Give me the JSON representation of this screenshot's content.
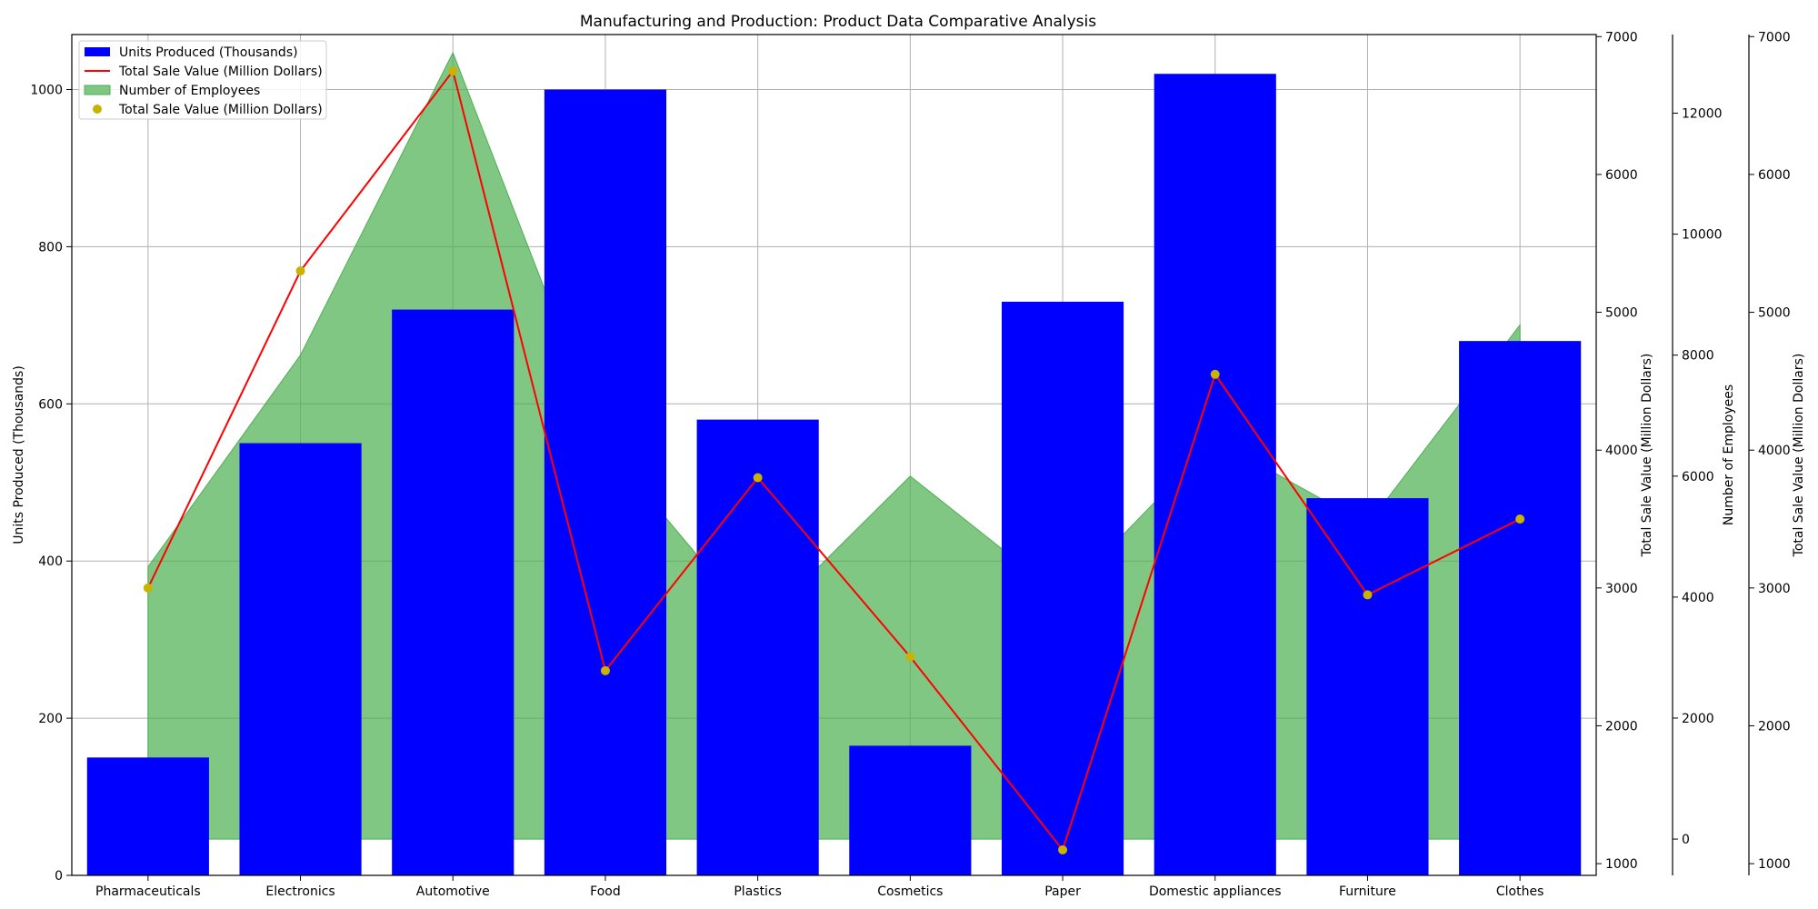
{
  "chart_data": {
    "type": "bar",
    "title": "Manufacturing and Production: Product Data Comparative Analysis",
    "categories": [
      "Pharmaceuticals",
      "Electronics",
      "Automotive",
      "Food",
      "Plastics",
      "Cosmetics",
      "Paper",
      "Domestic appliances",
      "Furniture",
      "Clothes"
    ],
    "series": [
      {
        "name": "Units Produced (Thousands)",
        "kind": "bar",
        "axis": "left",
        "color": "#0000ff",
        "values": [
          150,
          550,
          720,
          1000,
          580,
          165,
          730,
          1020,
          480,
          680
        ]
      },
      {
        "name": "Total Sale Value (Million Dollars)",
        "kind": "line",
        "axis": "right1",
        "color": "#ff0000",
        "values": [
          3000,
          5300,
          6750,
          2400,
          3800,
          2500,
          1100,
          4550,
          2950,
          3500
        ]
      },
      {
        "name": "Number of Employees",
        "kind": "area",
        "axis": "right2",
        "color": "#4caf50",
        "values": [
          4500,
          8000,
          13000,
          6500,
          3500,
          6000,
          4000,
          6600,
          5200,
          8500
        ]
      },
      {
        "name": "Total Sale Value (Million Dollars)",
        "kind": "scatter",
        "axis": "right3",
        "color": "#c8b400",
        "values": [
          3000,
          5300,
          6750,
          2400,
          3800,
          2500,
          1100,
          4550,
          2950,
          3500
        ]
      }
    ],
    "axes": {
      "left": {
        "label": "Units Produced (Thousands)",
        "ylim": [
          0,
          1070
        ],
        "ticks": [
          0,
          200,
          400,
          600,
          800,
          1000
        ],
        "color": "#000000"
      },
      "right1": {
        "label": "Total Sale Value (Million Dollars)",
        "ylim": [
          915,
          7015
        ],
        "ticks": [
          1000,
          2000,
          3000,
          4000,
          5000,
          6000,
          7000
        ],
        "color": "#000000"
      },
      "right2": {
        "label": "Number of Employees",
        "ylim": [
          -600,
          13300
        ],
        "ticks": [
          0,
          2000,
          4000,
          6000,
          8000,
          10000,
          12000
        ],
        "color": "#7fbf7f"
      },
      "right3": {
        "label": "Total Sale Value (Million Dollars)",
        "ylim": [
          915,
          7015
        ],
        "ticks": [
          1000,
          2000,
          3000,
          4000,
          5000,
          6000,
          7000
        ],
        "color": "#c8b400"
      }
    },
    "grid": true,
    "legend": "top-left"
  }
}
